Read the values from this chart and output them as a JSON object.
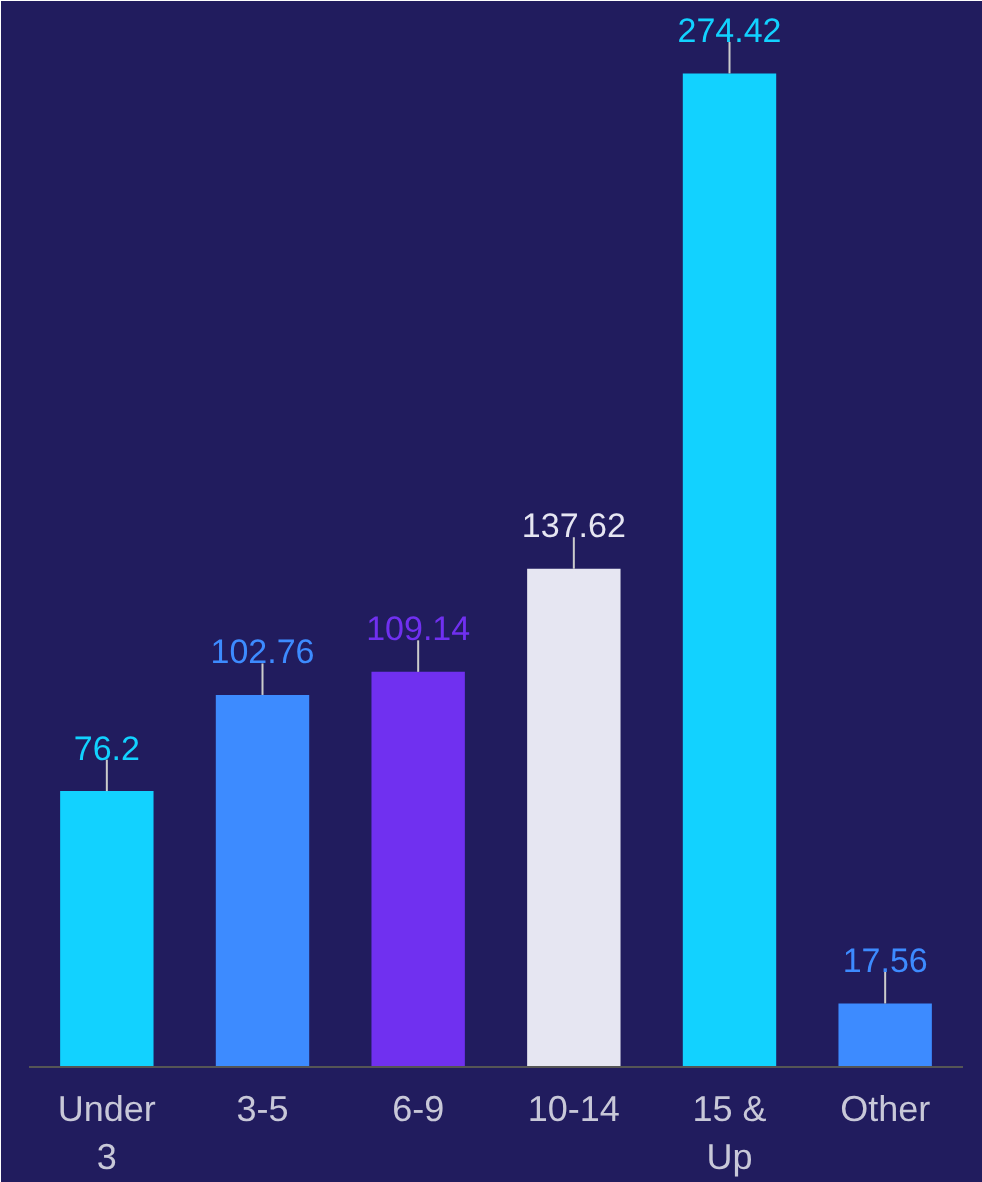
{
  "chart_data": {
    "type": "bar",
    "categories": [
      "Under 3",
      "3-5",
      "6-9",
      "10-14",
      "15 & Up",
      "Other"
    ],
    "values": [
      76.2,
      102.76,
      109.14,
      137.62,
      274.42,
      17.56
    ],
    "colors": [
      "#12d2ff",
      "#3d8bff",
      "#7030f0",
      "#e6e6f2",
      "#12d2ff",
      "#3d8bff"
    ],
    "ylim": [
      0,
      290
    ],
    "data_labels": true,
    "grid": false
  }
}
